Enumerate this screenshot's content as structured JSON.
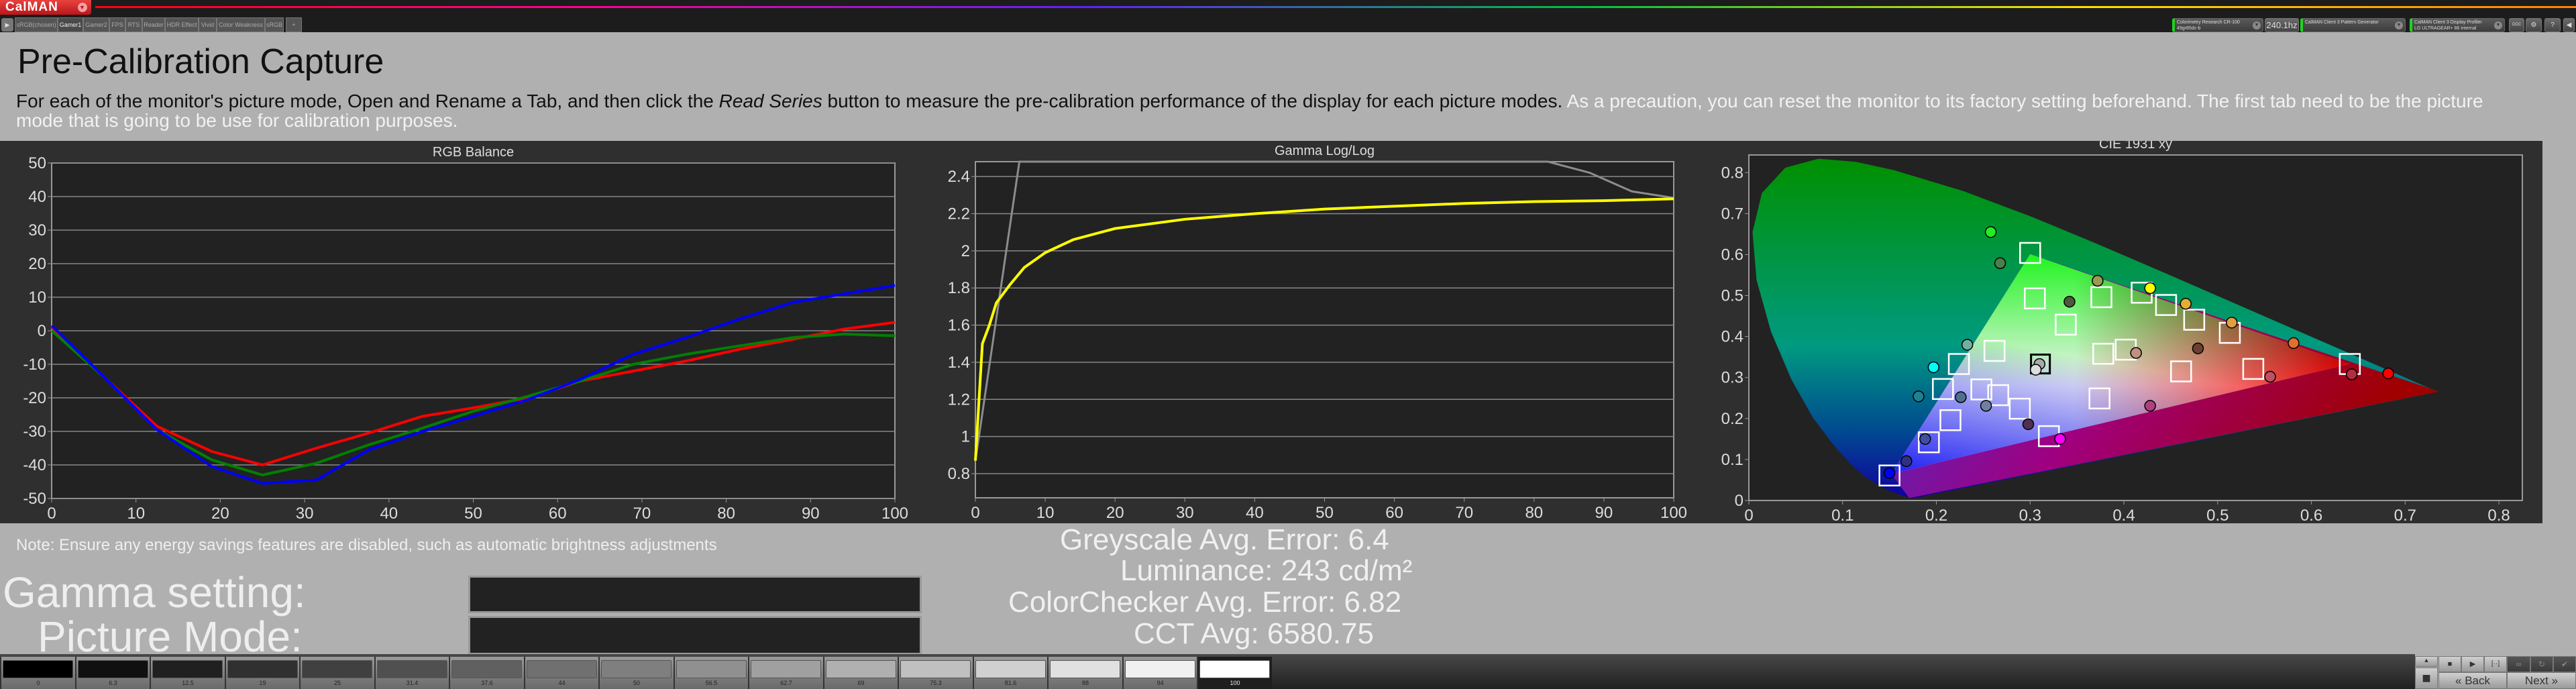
{
  "app": {
    "logo": "CalMAN",
    "logo_menu_icon": "chevron-down-icon"
  },
  "tabs": {
    "items": [
      {
        "label": "sRGB(chosen)"
      },
      {
        "label": "Gamer1",
        "active": true
      },
      {
        "label": "Gamer2"
      },
      {
        "label": "FPS"
      },
      {
        "label": "RTS"
      },
      {
        "label": "Reader"
      },
      {
        "label": "HDR Effect"
      },
      {
        "label": "Vivid"
      },
      {
        "label": "Color Weakness"
      },
      {
        "label": "sRGB"
      }
    ],
    "add_label": "+"
  },
  "devices": {
    "meter": {
      "name": "Colorimetry Research CR-100",
      "id": "49gr85dc-b",
      "rate": "240.1hz"
    },
    "generator": {
      "name": "CalMAN Client 3 Pattern Generator"
    },
    "display": {
      "name": "CalMAN Client 3 Display Profiler",
      "model": "LG ULTRAGEAR+ 86 internal"
    },
    "ddc_label": "DDC",
    "help_label": "?"
  },
  "page": {
    "title": "Pre-Calibration Capture",
    "intro_a": "For each of the monitor's picture mode, Open and Rename a Tab, and then click the ",
    "intro_em": "Read Series",
    "intro_b": " button to measure the pre-calibration performance of the display for each picture modes.",
    "intro_c": " As a precaution, you can reset the monitor to its factory setting beforehand. The first tab need to be the picture mode that is going to be use for calibration purposes.",
    "note": "Note: Ensure any energy savings features are disabled, such as automatic brightness adjustments",
    "gamma_label": "Gamma setting:",
    "gamma_value": "",
    "mode_label": "Picture Mode:",
    "mode_value": ""
  },
  "stats": {
    "greyscale": "Greyscale Avg. Error: 6.4",
    "luminance": "Luminance: 243 cd/m²",
    "colorchecker": "ColorChecker Avg. Error: 6.82",
    "cct": "CCT Avg: 6580.75"
  },
  "patches": {
    "labels": [
      "0",
      "6.3",
      "12.5",
      "19",
      "25",
      "31.4",
      "37.6",
      "44",
      "50",
      "56.5",
      "62.7",
      "69",
      "75.3",
      "81.6",
      "88",
      "94",
      "100"
    ],
    "selected": "100"
  },
  "controls": {
    "back": "Back",
    "next": "Next"
  },
  "chart_data": [
    {
      "type": "line",
      "title": "RGB Balance",
      "xlim": [
        0,
        100
      ],
      "ylim": [
        -50,
        50
      ],
      "grid": true,
      "xticks": [
        0,
        10,
        20,
        30,
        40,
        50,
        60,
        70,
        80,
        90,
        100
      ],
      "yticks": [
        -50,
        -40,
        -30,
        -20,
        -10,
        0,
        10,
        20,
        30,
        40,
        50
      ],
      "x": [
        0,
        6.3,
        12.5,
        19,
        25,
        31.4,
        37.6,
        44,
        50,
        56.5,
        62.7,
        69,
        75.3,
        81.6,
        88,
        94,
        100
      ],
      "series": [
        {
          "color": "#ff0000",
          "values": [
            1,
            -14,
            -28.5,
            -36,
            -40,
            -35,
            -30.5,
            -25.5,
            -23,
            -20,
            -15,
            -12,
            -9,
            -5.5,
            -2.5,
            0.5,
            2.5
          ]
        },
        {
          "color": "#008000",
          "values": [
            0,
            -14,
            -29.5,
            -38.5,
            -43,
            -39.5,
            -34,
            -29,
            -24,
            -19.5,
            -15,
            -10,
            -7,
            -4.5,
            -2,
            -1,
            -1.5
          ]
        },
        {
          "color": "#0000ff",
          "values": [
            1.5,
            -14,
            -29.5,
            -40.5,
            -45.5,
            -44.5,
            -35.5,
            -30,
            -25.5,
            -20.5,
            -14.5,
            -7,
            -2,
            3.5,
            8.5,
            11,
            13.5
          ]
        }
      ]
    },
    {
      "type": "line",
      "title": "Gamma Log/Log",
      "xlim": [
        0,
        100
      ],
      "ylim": [
        0.67,
        2.48
      ],
      "grid": true,
      "xticks": [
        0,
        10,
        20,
        30,
        40,
        50,
        60,
        70,
        80,
        90,
        100
      ],
      "yticks": [
        0.8,
        1,
        1.2,
        1.4,
        1.6,
        1.8,
        2,
        2.2,
        2.4
      ],
      "series": [
        {
          "color": "#ffff00",
          "points": [
            [
              0,
              0.87
            ],
            [
              1,
              1.5
            ],
            [
              2,
              1.6
            ],
            [
              3,
              1.72
            ],
            [
              5,
              1.82
            ],
            [
              7,
              1.91
            ],
            [
              10,
              1.99
            ],
            [
              14,
              2.06
            ],
            [
              20,
              2.12
            ],
            [
              30,
              2.17
            ],
            [
              40,
              2.2
            ],
            [
              50,
              2.225
            ],
            [
              60,
              2.24
            ],
            [
              70,
              2.255
            ],
            [
              80,
              2.265
            ],
            [
              90,
              2.27
            ],
            [
              100,
              2.28
            ]
          ]
        },
        {
          "color": "#8c8c8c",
          "points": [
            [
              0,
              0.87
            ],
            [
              6.3,
              2.48
            ],
            [
              82,
              2.48
            ],
            [
              88,
              2.42
            ],
            [
              94,
              2.32
            ],
            [
              100,
              2.285
            ]
          ]
        }
      ]
    },
    {
      "type": "scatter",
      "title": "CIE 1931 xy",
      "xlim": [
        0,
        0.825
      ],
      "ylim": [
        0,
        0.843
      ],
      "grid": false,
      "xticks": [
        0,
        0.1,
        0.2,
        0.3,
        0.4,
        0.5,
        0.6,
        0.7,
        0.8
      ],
      "yticks": [
        0,
        0.1,
        0.2,
        0.3,
        0.4,
        0.5,
        0.6,
        0.7,
        0.8
      ],
      "target_gamut": [
        [
          0.64,
          0.333
        ],
        [
          0.3,
          0.601
        ],
        [
          0.152,
          0.065
        ]
      ],
      "measured_gamut": [
        [
          0.736,
          0.266
        ],
        [
          0.3,
          0.601
        ],
        [
          0.152,
          0.065
        ],
        [
          0.171,
          0.006
        ]
      ],
      "targets": [
        [
          0.3,
          0.604
        ],
        [
          0.305,
          0.493
        ],
        [
          0.376,
          0.496
        ],
        [
          0.419,
          0.507
        ],
        [
          0.445,
          0.477
        ],
        [
          0.475,
          0.441
        ],
        [
          0.513,
          0.409
        ],
        [
          0.338,
          0.429
        ],
        [
          0.262,
          0.365
        ],
        [
          0.402,
          0.368
        ],
        [
          0.378,
          0.358
        ],
        [
          0.224,
          0.333
        ],
        [
          0.461,
          0.315
        ],
        [
          0.538,
          0.321
        ],
        [
          0.641,
          0.333
        ],
        [
          0.207,
          0.272
        ],
        [
          0.248,
          0.271
        ],
        [
          0.266,
          0.257
        ],
        [
          0.374,
          0.249
        ],
        [
          0.289,
          0.224
        ],
        [
          0.215,
          0.196
        ],
        [
          0.192,
          0.142
        ],
        [
          0.32,
          0.157
        ],
        [
          0.15,
          0.061
        ]
      ],
      "white_target": [
        0.311,
        0.333
      ],
      "measured": [
        {
          "x": 0.258,
          "y": 0.655,
          "color": "#22ee22"
        },
        {
          "x": 0.268,
          "y": 0.579,
          "color": "#4a7f4a"
        },
        {
          "x": 0.372,
          "y": 0.536,
          "color": "#9a9a50"
        },
        {
          "x": 0.428,
          "y": 0.518,
          "color": "#ffff00"
        },
        {
          "x": 0.342,
          "y": 0.485,
          "color": "#4a5a3a"
        },
        {
          "x": 0.466,
          "y": 0.48,
          "color": "#e0b030"
        },
        {
          "x": 0.515,
          "y": 0.434,
          "color": "#e0a040"
        },
        {
          "x": 0.581,
          "y": 0.384,
          "color": "#e07030"
        },
        {
          "x": 0.479,
          "y": 0.371,
          "color": "#6a4030"
        },
        {
          "x": 0.413,
          "y": 0.36,
          "color": "#c09080"
        },
        {
          "x": 0.233,
          "y": 0.38,
          "color": "#70b0a0"
        },
        {
          "x": 0.197,
          "y": 0.325,
          "color": "#00ffff"
        },
        {
          "x": 0.31,
          "y": 0.333,
          "color": "#aaaaaa"
        },
        {
          "x": 0.306,
          "y": 0.319,
          "color": "#dddddd"
        },
        {
          "x": 0.556,
          "y": 0.302,
          "color": "#c05060"
        },
        {
          "x": 0.643,
          "y": 0.308,
          "color": "#b03040"
        },
        {
          "x": 0.682,
          "y": 0.31,
          "color": "#ff0000"
        },
        {
          "x": 0.181,
          "y": 0.254,
          "color": "#208090"
        },
        {
          "x": 0.226,
          "y": 0.252,
          "color": "#507090"
        },
        {
          "x": 0.253,
          "y": 0.231,
          "color": "#7080a0"
        },
        {
          "x": 0.428,
          "y": 0.231,
          "color": "#b04080"
        },
        {
          "x": 0.298,
          "y": 0.186,
          "color": "#503050"
        },
        {
          "x": 0.188,
          "y": 0.15,
          "color": "#4050a0"
        },
        {
          "x": 0.332,
          "y": 0.15,
          "color": "#ff00ff"
        },
        {
          "x": 0.168,
          "y": 0.096,
          "color": "#303080"
        },
        {
          "x": 0.15,
          "y": 0.067,
          "color": "#0000ff"
        }
      ]
    }
  ]
}
